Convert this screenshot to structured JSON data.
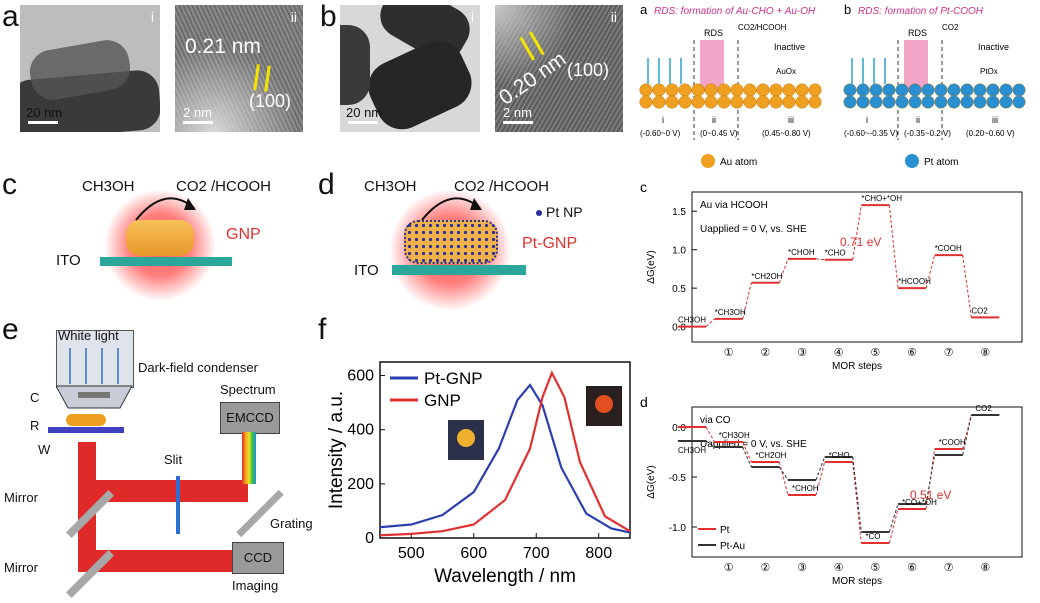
{
  "labels": {
    "a": "a",
    "b": "b",
    "c": "c",
    "d": "d",
    "e": "e",
    "f": "f"
  },
  "tem": {
    "a_i_sub": "i",
    "a_ii_sub": "ii",
    "b_i_sub": "i",
    "b_ii_sub": "ii",
    "a_i_scale": "20 nm",
    "a_ii_scale": "2 nm",
    "b_i_scale": "20 nm",
    "b_ii_scale": "2 nm",
    "a_lattice": "0.21 nm",
    "b_lattice": "0.20 nm",
    "a_plane": "(100)",
    "b_plane": "(100)"
  },
  "schem_c": {
    "reactant": "CH3OH",
    "product": "CO2 /HCOOH",
    "particle": "GNP",
    "substrate": "ITO"
  },
  "schem_d": {
    "reactant": "CH3OH",
    "product": "CO2 /HCOOH",
    "legend": "Pt NP",
    "particle": "Pt-GNP",
    "substrate": "ITO"
  },
  "setup": {
    "light": "White light",
    "condenser": "Dark-field condenser",
    "spectrum": "Spectrum",
    "emccd": "EMCCD",
    "slit": "Slit",
    "grating": "Grating",
    "mirror1": "Mirror",
    "mirror2": "Mirror",
    "ccd": "CCD",
    "imaging": "Imaging",
    "c": "C",
    "r": "R",
    "w": "W"
  },
  "rds_a": {
    "panel": "a",
    "title": "RDS: formation of Au-CHO + Au-OH",
    "rds": "RDS",
    "prod": "CO2/HCOOH",
    "inactive": "Inactive",
    "oxide": "AuOx",
    "r1": "i",
    "r2": "ii",
    "r3": "iii",
    "range1": "(-0.60~0 V)",
    "range2": "(0~0.45 V)",
    "range3": "(0.45~0.80 V)",
    "atom": "Au atom",
    "colors": {
      "atom": "#f0a020",
      "bar": "#f4a6c8",
      "title": "#d0308a"
    }
  },
  "rds_b": {
    "panel": "b",
    "title": "RDS: formation of Pt-COOH",
    "rds": "RDS",
    "prod": "CO2",
    "inactive": "Inactive",
    "oxide": "PtOx",
    "r1": "i",
    "r2": "ii",
    "r3": "iii",
    "range1": "(-0.60~-0.35 V)",
    "range2": "(-0.35~0.2 V)",
    "range3": "(0.20~0.60 V)",
    "atom": "Pt atom",
    "colors": {
      "atom": "#2a8fd0"
    }
  },
  "chart_data": [
    {
      "type": "line",
      "panel": "f",
      "xlabel": "Wavelength / nm",
      "ylabel": "Intensity / a.u.",
      "xlim": [
        450,
        850
      ],
      "ylim": [
        0,
        650
      ],
      "xticks": [
        500,
        600,
        700,
        800
      ],
      "yticks": [
        0,
        200,
        400,
        600
      ],
      "legend": "top-left",
      "series": [
        {
          "name": "Pt-GNP",
          "color": "#2b3fb0",
          "x": [
            450,
            500,
            550,
            600,
            640,
            670,
            690,
            710,
            740,
            780,
            820,
            850
          ],
          "y": [
            40,
            50,
            85,
            170,
            330,
            510,
            565,
            490,
            260,
            90,
            35,
            20
          ]
        },
        {
          "name": "GNP",
          "color": "#e03030",
          "x": [
            450,
            500,
            550,
            600,
            650,
            690,
            710,
            725,
            745,
            770,
            810,
            850
          ],
          "y": [
            10,
            15,
            25,
            50,
            140,
            330,
            520,
            610,
            520,
            280,
            80,
            25
          ]
        }
      ]
    },
    {
      "type": "line",
      "panel": "c",
      "title": "Au  via HCOOH",
      "annotation": "Uapplied = 0 V, vs. SHE",
      "barrier_label": "0.71 eV",
      "xlabel": "MOR steps",
      "ylabel": "ΔG(eV)",
      "ylim": [
        -0.2,
        1.75
      ],
      "yticks": [
        0.0,
        0.5,
        1.0,
        1.5
      ],
      "categories": [
        "①",
        "②",
        "③",
        "④",
        "⑤",
        "⑥",
        "⑦",
        "⑧"
      ],
      "series": [
        {
          "name": "",
          "color": "#e03030",
          "levels": [
            0.0,
            0.1,
            0.57,
            0.88,
            0.87,
            1.58,
            0.5,
            0.93,
            0.12
          ],
          "labels": [
            "CH3OH",
            "*CH3OH",
            "*CH2OH",
            "*CHOH",
            "*CHO",
            "*CHO+*OH",
            "*HCOOH",
            "*COOH",
            "CO2"
          ]
        }
      ]
    },
    {
      "type": "line",
      "panel": "d",
      "title": "via CO",
      "annotation": "Uapplied = 0 V, vs. SHE",
      "barrier_label": "0.51 eV",
      "xlabel": "MOR steps",
      "ylabel": "ΔG(eV)",
      "ylim": [
        -1.3,
        0.2
      ],
      "yticks": [
        0.0,
        -0.5,
        -1.0
      ],
      "categories": [
        "①",
        "②",
        "③",
        "④",
        "⑤",
        "⑥",
        "⑦",
        "⑧"
      ],
      "legend": "bottom-left",
      "series": [
        {
          "name": "Pt",
          "color": "#e03030",
          "levels": [
            0.0,
            -0.15,
            -0.35,
            -0.68,
            -0.35,
            -1.16,
            -0.82,
            -0.22,
            0.12
          ]
        },
        {
          "name": "Pt-Au",
          "color": "#333333",
          "levels": [
            -0.14,
            -0.2,
            -0.4,
            -0.53,
            -0.3,
            -1.05,
            -0.77,
            -0.28,
            0.12
          ]
        }
      ],
      "labels": [
        "*CH3OH",
        "*CH2OH",
        "*CHOH",
        "*CHO",
        "*CO",
        "*CO+*OH",
        "*COOH",
        "CO2"
      ],
      "start_label": "CH3OH"
    }
  ]
}
